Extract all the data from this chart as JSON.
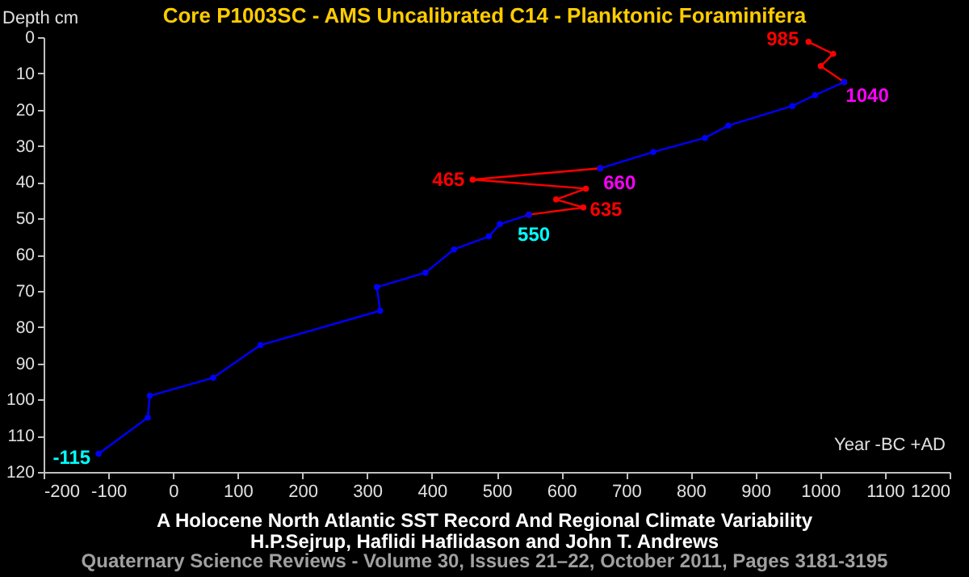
{
  "chart_data": {
    "type": "line",
    "title": "Core P1003SC - AMS Uncalibrated C14 - Planktonic Foraminifera",
    "xlabel": "Year -BC +AD",
    "ylabel": "Depth cm",
    "series": [
      {
        "color": "#0000ff",
        "x": [
          -115,
          -39,
          -36,
          62,
          135,
          320,
          315,
          390,
          434,
          488,
          505,
          550,
          null,
          660,
          742,
          822,
          858,
          957,
          992,
          1037
        ],
        "values": [
          115,
          105,
          99,
          94,
          85,
          75.5,
          69,
          65,
          58.6,
          55,
          51.6,
          49,
          null,
          36.2,
          31.7,
          27.8,
          24.4,
          19,
          16,
          12.4
        ]
      },
      {
        "color": "#ff0000",
        "x": [
          550,
          634,
          592,
          638,
          463,
          660,
          null,
          1037,
          1001,
          1020,
          982
        ],
        "values": [
          49,
          47,
          44.8,
          41.8,
          39.3,
          36.2,
          null,
          12.4,
          8,
          4.6,
          1.3
        ]
      }
    ],
    "annotations": [
      {
        "text": "985",
        "x": 982,
        "y": 1.3
      },
      {
        "text": "1040",
        "x": 1037,
        "y": 12.4
      },
      {
        "text": "465",
        "x": 463,
        "y": 39.3
      },
      {
        "text": "660",
        "x": 660,
        "y": 36.2
      },
      {
        "text": "635",
        "x": 634,
        "y": 47
      },
      {
        "text": "550",
        "x": 550,
        "y": 49
      },
      {
        "text": "-115",
        "x": -115,
        "y": 115
      },
      "A Holocene North Atlantic SST Record And Regional Climate Variability",
      "H.P.Sejrup, Haflidi Haflidason and John T. Andrews",
      "Quaternary Science Reviews - Volume 30, Issues 21–22, October 2011, Pages 3181-3195"
    ],
    "xlim": [
      -200,
      1200
    ],
    "xticks": [
      -200,
      -100,
      0,
      100,
      200,
      300,
      400,
      500,
      600,
      700,
      800,
      900,
      1000,
      1100,
      1200
    ],
    "ylim": [
      120,
      0
    ],
    "yticks": [
      0,
      10,
      20,
      30,
      40,
      50,
      60,
      70,
      80,
      90,
      100,
      110,
      120
    ],
    "marker": "circle",
    "grid": false,
    "legend": false
  }
}
